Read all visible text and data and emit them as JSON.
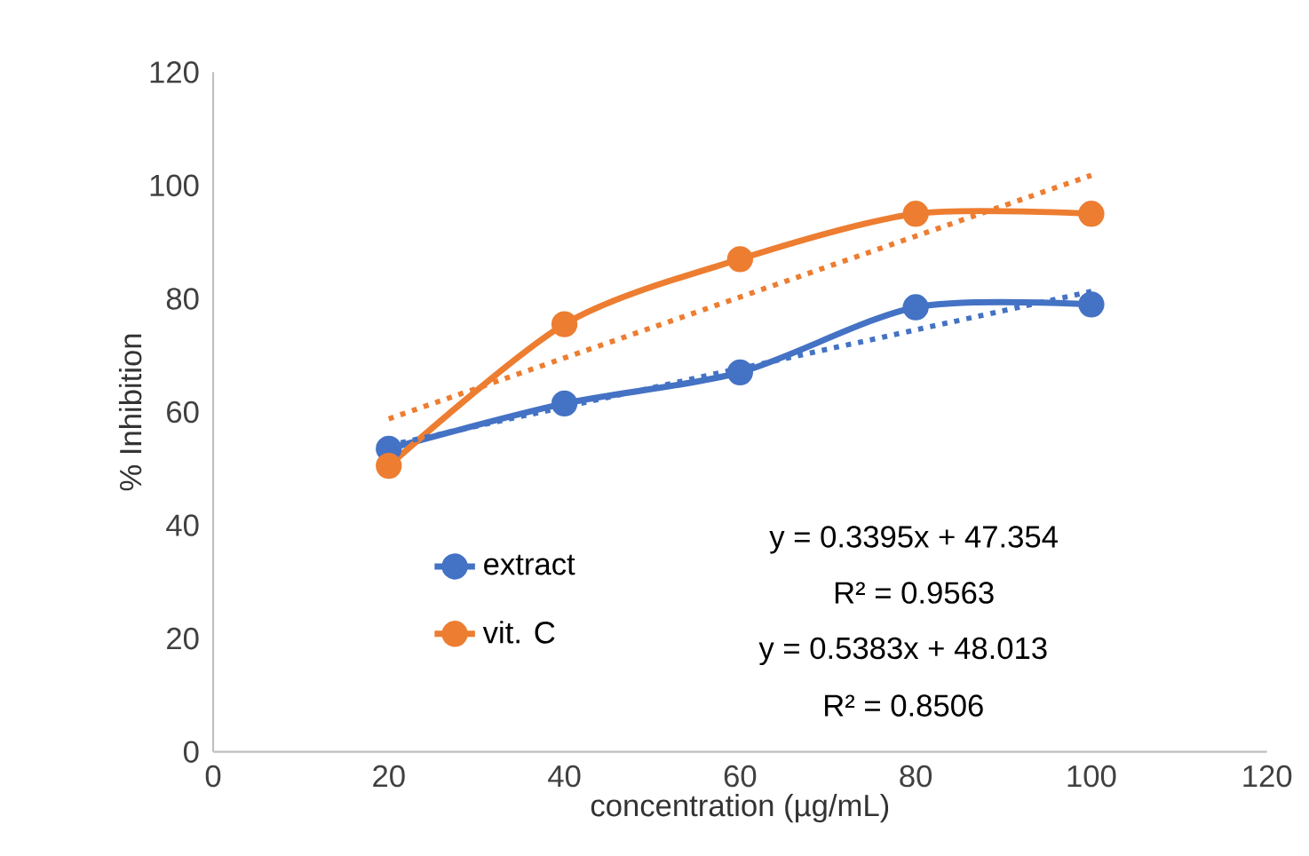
{
  "chart_data": {
    "type": "line",
    "xlabel": "concentration (µg/mL)",
    "ylabel": "% Inhibition",
    "xlim": [
      0,
      120
    ],
    "xticks": [
      0,
      20,
      40,
      60,
      80,
      100,
      120
    ],
    "ylim": [
      0,
      120
    ],
    "yticks": [
      0,
      20,
      40,
      60,
      80,
      100,
      120
    ],
    "grid": false,
    "legend": "bottom left",
    "series": [
      {
        "name": "extract",
        "color": "#4472c4",
        "marker": "circle",
        "x": [
          20,
          40,
          60,
          80,
          100
        ],
        "values": [
          53.5,
          61.5,
          67,
          78.5,
          79
        ]
      },
      {
        "name": "vit. C",
        "color": "#ed7d31",
        "marker": "circle",
        "x": [
          20,
          40,
          60,
          80,
          100
        ],
        "values": [
          50.5,
          75.5,
          87,
          95,
          95
        ]
      },
      {
        "type": "line",
        "color": "#4472c4",
        "marker": "none",
        "line_style": "dotted",
        "x": [
          20,
          100
        ],
        "values": [
          54.1,
          81.3
        ]
      },
      {
        "type": "line",
        "color": "#ed7d31",
        "marker": "none",
        "line_style": "dotted",
        "x": [
          20,
          100
        ],
        "values": [
          58.8,
          101.8
        ]
      }
    ],
    "annotations": [
      "y = 0.3395x + 47.354",
      "R² = 0.9563",
      "y = 0.5383x + 48.013",
      "R² = 0.8506"
    ]
  }
}
